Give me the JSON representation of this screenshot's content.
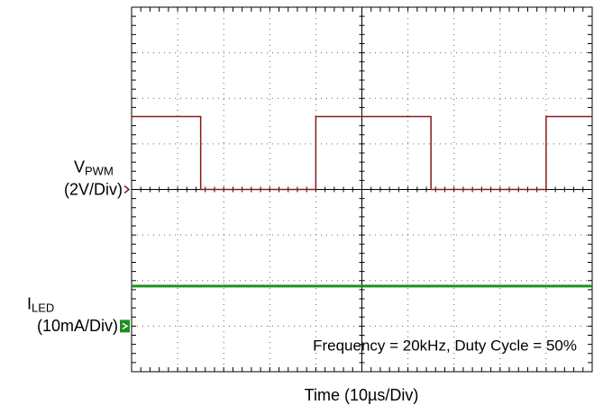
{
  "chart_data": {
    "type": "line",
    "xlim": [
      0,
      10
    ],
    "ylim": [
      0,
      8
    ],
    "xticks": [
      0,
      1,
      2,
      3,
      4,
      5,
      6,
      7,
      8,
      9,
      10
    ],
    "yticks": [
      0,
      1,
      2,
      3,
      4,
      5,
      6,
      7,
      8
    ],
    "grid": true,
    "x_label": "Time (10µs/Div)",
    "annotation": "Frequency = 20kHz, Duty Cycle = 50%",
    "series": [
      {
        "name": "V",
        "subscript": "PWM",
        "scale": "(2V/Div)",
        "color": "#8b1a1a",
        "ground_level": 4,
        "x": [
          0,
          1.5,
          1.5,
          4,
          4,
          6.5,
          6.5,
          9,
          9,
          10
        ],
        "values": [
          5.6,
          5.6,
          4,
          4,
          5.6,
          5.6,
          4,
          4,
          5.6,
          5.6
        ]
      },
      {
        "name": "I",
        "subscript": "LED",
        "scale": "(10mA/Div)",
        "color": "#1f8f1f",
        "ground_level": 1,
        "x": [
          0,
          10
        ],
        "values": [
          1.88,
          1.88
        ]
      }
    ]
  }
}
